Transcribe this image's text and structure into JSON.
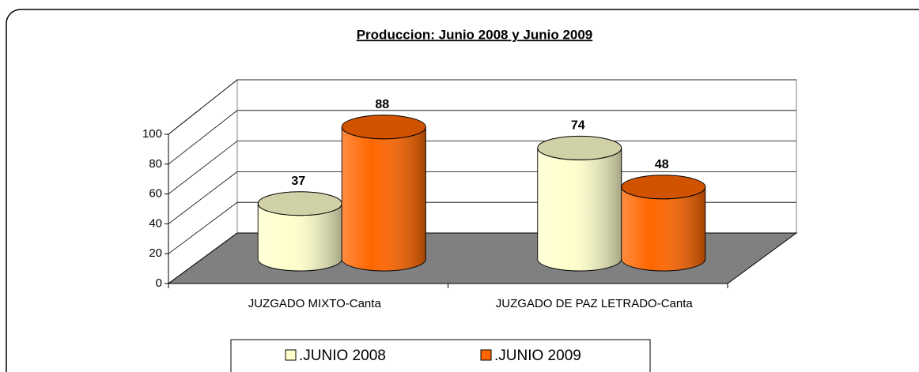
{
  "chart_data": {
    "type": "bar",
    "title": "Produccion: Junio 2008 y Junio 2009",
    "categories": [
      "JUZGADO MIXTO-Canta",
      "JUZGADO DE PAZ LETRADO-Canta"
    ],
    "series": [
      {
        "name": ".JUNIO 2008",
        "color": "#ffffcc",
        "values": [
          37,
          74
        ]
      },
      {
        "name": ".JUNIO 2009",
        "color": "#ff6600",
        "values": [
          88,
          48
        ]
      }
    ],
    "ylim": [
      0,
      100
    ],
    "yticks": [
      0,
      20,
      40,
      60,
      80,
      100
    ],
    "grid": true
  }
}
